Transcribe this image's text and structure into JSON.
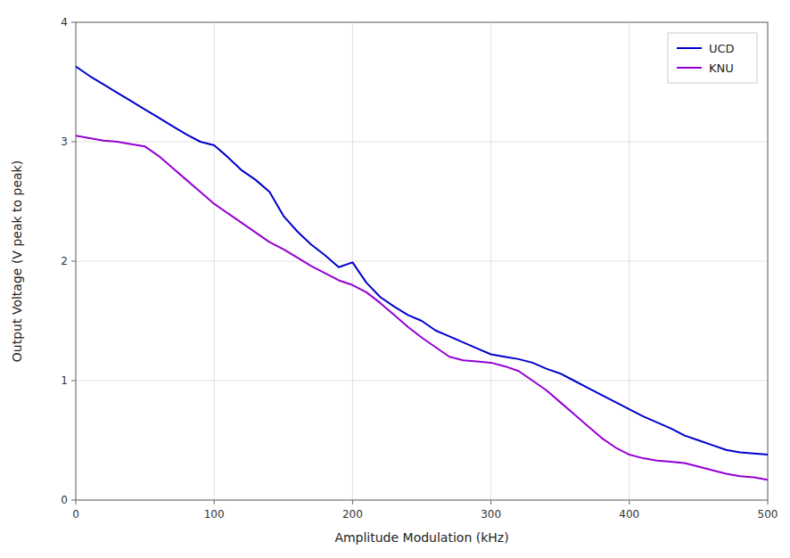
{
  "chart_data": {
    "type": "line",
    "xlabel": "Amplitude Modulation (kHz)",
    "ylabel": "Output Voltage (V peak to peak)",
    "xlim": [
      0,
      500
    ],
    "ylim": [
      0,
      4
    ],
    "xticks": [
      0,
      100,
      200,
      300,
      400,
      500
    ],
    "yticks": [
      0,
      1,
      2,
      3,
      4
    ],
    "grid": true,
    "legend": "upper right",
    "x": [
      0,
      10,
      20,
      30,
      40,
      50,
      60,
      70,
      80,
      90,
      100,
      110,
      120,
      130,
      140,
      150,
      160,
      170,
      180,
      190,
      200,
      210,
      220,
      230,
      240,
      250,
      260,
      270,
      280,
      290,
      300,
      310,
      320,
      330,
      340,
      350,
      360,
      370,
      380,
      390,
      400,
      410,
      420,
      430,
      440,
      450,
      460,
      470,
      480,
      490,
      500
    ],
    "series": [
      {
        "name": "UCD",
        "color": "#0000CD",
        "values": [
          3.63,
          3.55,
          3.48,
          3.41,
          3.34,
          3.27,
          3.2,
          3.13,
          3.06,
          3.0,
          2.97,
          2.87,
          2.76,
          2.68,
          2.58,
          2.38,
          2.25,
          2.14,
          2.05,
          1.95,
          1.99,
          1.82,
          1.7,
          1.62,
          1.55,
          1.5,
          1.42,
          1.37,
          1.32,
          1.27,
          1.22,
          1.2,
          1.18,
          1.15,
          1.1,
          1.06,
          1.0,
          0.94,
          0.88,
          0.82,
          0.76,
          0.7,
          0.65,
          0.6,
          0.54,
          0.5,
          0.46,
          0.42,
          0.4,
          0.39,
          0.38
        ]
      },
      {
        "name": "KNU",
        "color": "#9400D3",
        "values": [
          3.05,
          3.03,
          3.01,
          3.0,
          2.98,
          2.96,
          2.88,
          2.78,
          2.68,
          2.58,
          2.48,
          2.4,
          2.32,
          2.24,
          2.16,
          2.1,
          2.03,
          1.96,
          1.9,
          1.84,
          1.8,
          1.74,
          1.65,
          1.55,
          1.45,
          1.36,
          1.28,
          1.2,
          1.17,
          1.16,
          1.15,
          1.12,
          1.08,
          1.0,
          0.92,
          0.82,
          0.72,
          0.62,
          0.52,
          0.44,
          0.38,
          0.35,
          0.33,
          0.32,
          0.31,
          0.28,
          0.25,
          0.22,
          0.2,
          0.19,
          0.17
        ]
      }
    ]
  }
}
